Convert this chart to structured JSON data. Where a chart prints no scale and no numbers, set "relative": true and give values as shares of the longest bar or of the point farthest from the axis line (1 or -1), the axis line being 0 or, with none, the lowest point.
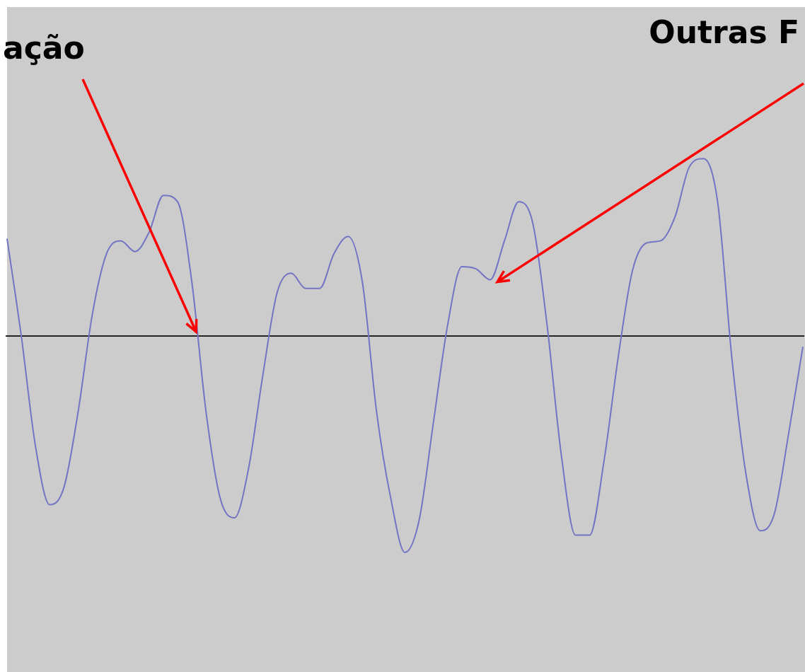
{
  "chart_data": {
    "type": "line",
    "relative": true,
    "marker": "none",
    "legend": false,
    "annotations": [
      "ação",
      "Outras F"
    ],
    "categories": [
      null,
      null,
      null,
      null,
      null,
      null,
      null,
      null,
      null,
      null,
      null,
      null,
      null,
      null,
      null,
      null,
      null,
      null,
      null,
      null,
      null,
      null,
      null,
      null,
      null,
      null,
      null,
      null,
      null,
      null,
      null,
      null,
      null,
      null,
      null,
      null,
      null,
      null,
      null,
      null,
      null,
      null,
      null,
      null,
      null,
      null,
      null,
      null,
      null,
      null,
      null,
      null,
      null,
      null,
      null,
      null,
      null
    ],
    "series": [
      {
        "color": "#7474c4",
        "values": [
          0.45,
          0,
          -0.51,
          -0.78,
          -0.7,
          -0.35,
          0.1,
          0.38,
          0.44,
          0.39,
          0.48,
          0.65,
          0.62,
          0.25,
          -0.35,
          -0.75,
          -0.84,
          -0.61,
          -0.18,
          0.2,
          0.29,
          0.22,
          0.22,
          0.38,
          0.46,
          0.25,
          -0.35,
          -0.75,
          -1,
          -0.85,
          -0.4,
          0.05,
          0.32,
          0.31,
          0.26,
          0.44,
          0.62,
          0.52,
          0.05,
          -0.55,
          -0.92,
          -0.92,
          -0.58,
          -0.1,
          0.3,
          0.43,
          0.44,
          0.55,
          0.78,
          0.82,
          0.62,
          -0.1,
          -0.64,
          -0.9,
          -0.82,
          -0.45,
          -0.05
        ]
      }
    ]
  }
}
